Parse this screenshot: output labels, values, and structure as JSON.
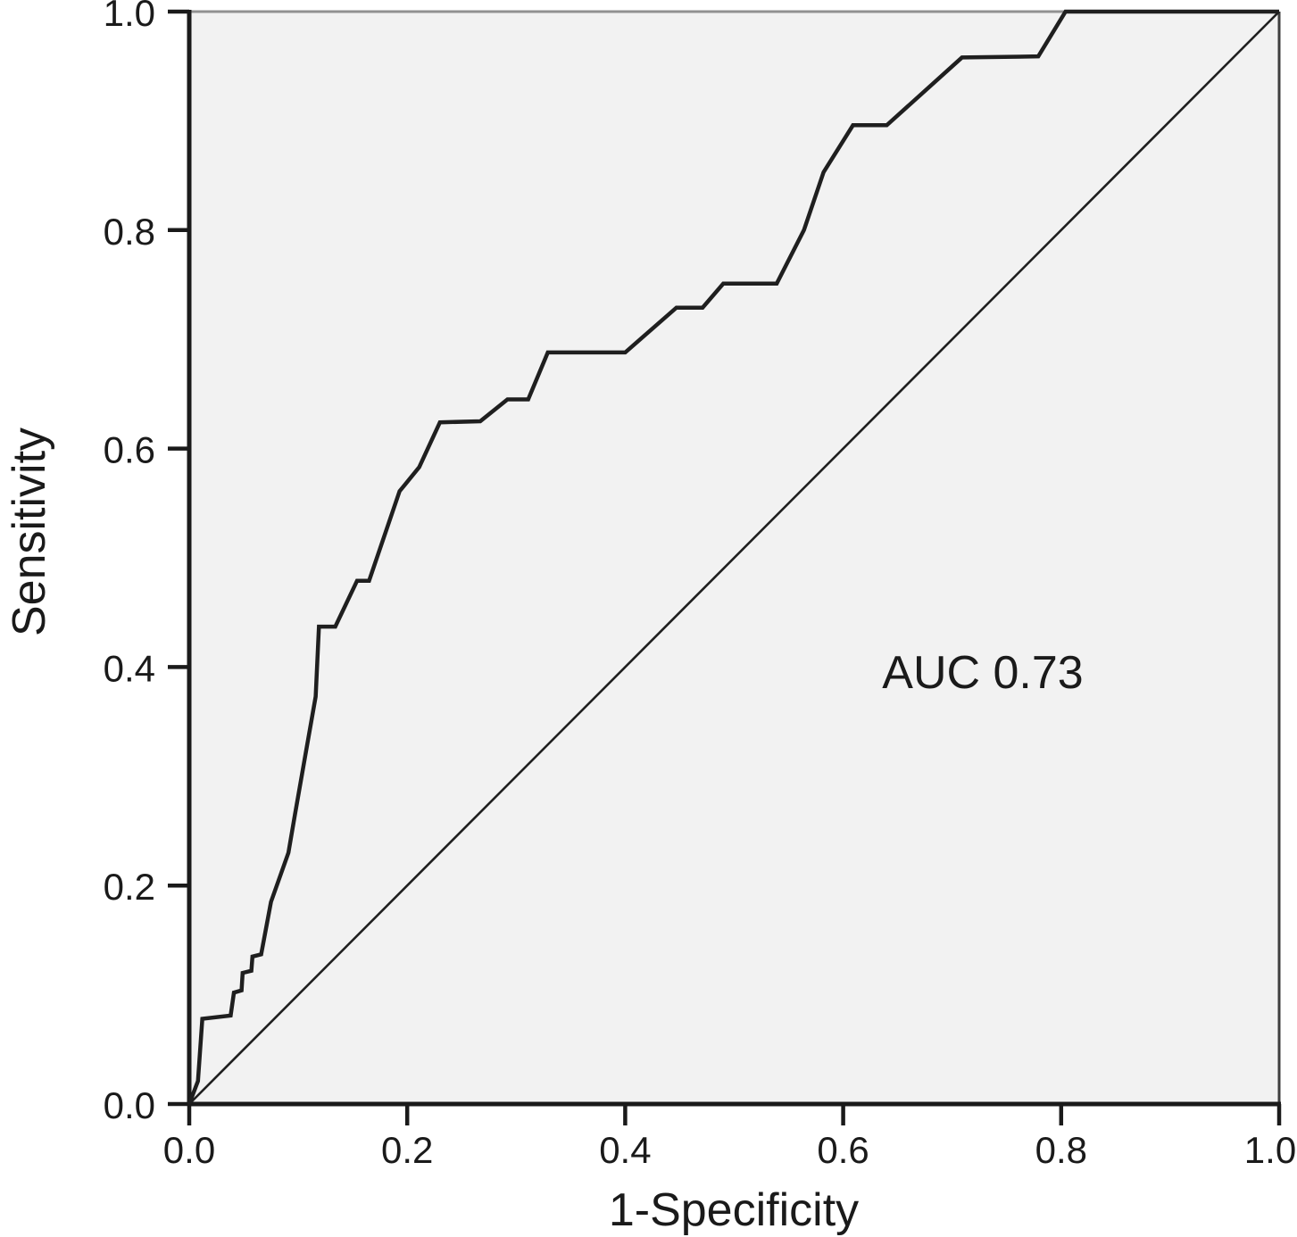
{
  "figure": {
    "background": "#ffffff",
    "plot_background": "#f2f2f2",
    "frame": {
      "top_color": "#919191",
      "right_color": "#3f3f3f",
      "axis_color": "#1a1a1a"
    }
  },
  "chart_data": {
    "type": "line",
    "title": "",
    "xlabel": "1-Specificity",
    "ylabel": "Sensitivity",
    "xlim": [
      0.0,
      1.0
    ],
    "ylim": [
      0.0,
      1.0
    ],
    "grid": false,
    "legend": "none",
    "auc": 0.73,
    "annotation": {
      "text": "AUC 0.73",
      "x": 0.73,
      "y": 0.39
    },
    "x_ticks": {
      "values": [
        0.0,
        0.2,
        0.4,
        0.6,
        0.8,
        1.0
      ],
      "labels": [
        "0.0",
        "0.2",
        "0.4",
        "0.6",
        "0.8",
        "1.0"
      ]
    },
    "y_ticks": {
      "values": [
        0.0,
        0.2,
        0.4,
        0.6,
        0.8,
        1.0
      ],
      "labels": [
        "0.0",
        "0.2",
        "0.4",
        "0.6",
        "0.8",
        "1.0"
      ]
    },
    "series": [
      {
        "name": "ROC curve",
        "color": "#1f1f1f",
        "line_width": 4.5,
        "points": [
          [
            0.0,
            0.0
          ],
          [
            0.008,
            0.021
          ],
          [
            0.012,
            0.078
          ],
          [
            0.038,
            0.081
          ],
          [
            0.041,
            0.102
          ],
          [
            0.048,
            0.104
          ],
          [
            0.049,
            0.12
          ],
          [
            0.057,
            0.122
          ],
          [
            0.058,
            0.135
          ],
          [
            0.066,
            0.137
          ],
          [
            0.075,
            0.185
          ],
          [
            0.091,
            0.23
          ],
          [
            0.097,
            0.265
          ],
          [
            0.107,
            0.322
          ],
          [
            0.116,
            0.373
          ],
          [
            0.119,
            0.437
          ],
          [
            0.134,
            0.437
          ],
          [
            0.154,
            0.479
          ],
          [
            0.165,
            0.479
          ],
          [
            0.193,
            0.561
          ],
          [
            0.198,
            0.567
          ],
          [
            0.211,
            0.583
          ],
          [
            0.23,
            0.624
          ],
          [
            0.267,
            0.625
          ],
          [
            0.292,
            0.645
          ],
          [
            0.311,
            0.645
          ],
          [
            0.329,
            0.688
          ],
          [
            0.4,
            0.688
          ],
          [
            0.447,
            0.729
          ],
          [
            0.471,
            0.729
          ],
          [
            0.49,
            0.751
          ],
          [
            0.539,
            0.751
          ],
          [
            0.564,
            0.8
          ],
          [
            0.582,
            0.853
          ],
          [
            0.609,
            0.896
          ],
          [
            0.64,
            0.896
          ],
          [
            0.709,
            0.958
          ],
          [
            0.779,
            0.959
          ],
          [
            0.804,
            1.0
          ],
          [
            1.0,
            1.0
          ]
        ]
      }
    ],
    "reference_line": {
      "name": "diagonal reference",
      "color": "#1f1f1f",
      "line_width": 2.6,
      "points": [
        [
          0.0,
          0.0
        ],
        [
          1.0,
          1.0
        ]
      ]
    }
  }
}
